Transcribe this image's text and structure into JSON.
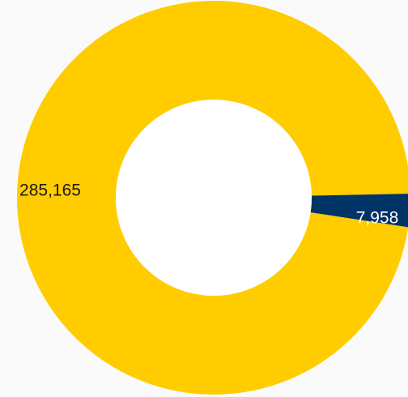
{
  "chart_data": {
    "type": "pie",
    "variant": "donut",
    "title": "",
    "slices": [
      {
        "label": "285,165",
        "value": 285165,
        "color": "#ffcc00",
        "label_color": "#1a1a1a"
      },
      {
        "label": "7,958",
        "value": 7958,
        "color": "#003366",
        "label_color": "#ffffff"
      }
    ],
    "legend": "none"
  },
  "colors": {
    "background": "#fafafa",
    "hole": "#ffffff"
  }
}
